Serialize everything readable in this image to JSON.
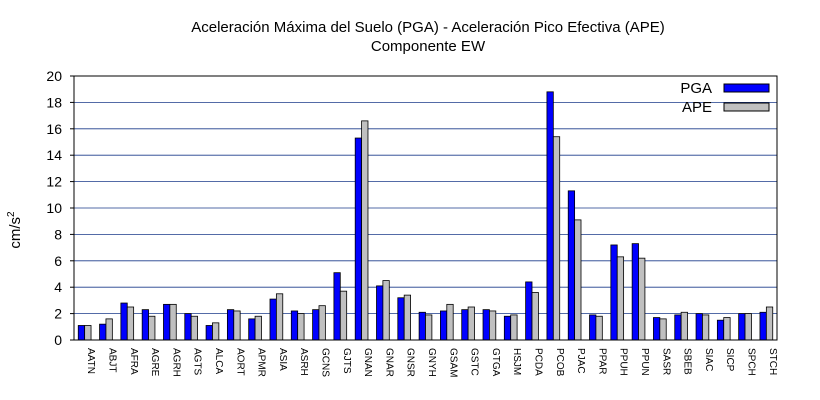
{
  "chart_data": {
    "type": "bar",
    "title": "Aceleración Máxima del Suelo (PGA) -  Aceleración Pico Efectiva (APE)",
    "subtitle": "Componente EW",
    "ylabel": "cm/s",
    "ylabel_sup": "2",
    "xlabel": "",
    "ylim": [
      0,
      20
    ],
    "yticks": [
      0,
      2,
      4,
      6,
      8,
      10,
      12,
      14,
      16,
      18,
      20
    ],
    "grid": true,
    "legend_position": "top-right",
    "categories": [
      "AATN",
      "ABJT",
      "AFRA",
      "AGRE",
      "AGRH",
      "AGTS",
      "ALCA",
      "AORT",
      "APMR",
      "ASIA",
      "ASRH",
      "GCNS",
      "GJTS",
      "GNAN",
      "GNAR",
      "GNSR",
      "GNYH",
      "GSAM",
      "GSTC",
      "GTGA",
      "HSJM",
      "PCDA",
      "PCOB",
      "PJAC",
      "PPAR",
      "PPUH",
      "PPUN",
      "SASR",
      "SBEB",
      "SIAC",
      "SICP",
      "SPCH",
      "STCH"
    ],
    "series": [
      {
        "name": "PGA",
        "color": "#0000ff",
        "values": [
          1.1,
          1.2,
          2.8,
          2.3,
          2.7,
          2.0,
          1.1,
          2.3,
          1.6,
          3.1,
          2.2,
          2.3,
          5.1,
          15.3,
          4.1,
          3.2,
          2.1,
          2.2,
          2.3,
          2.3,
          1.8,
          4.4,
          18.8,
          11.3,
          1.9,
          7.2,
          7.3,
          1.7,
          1.9,
          2.0,
          1.5,
          2.0,
          2.1
        ]
      },
      {
        "name": "APE",
        "color": "#c0c0c0",
        "values": [
          1.1,
          1.6,
          2.5,
          1.8,
          2.7,
          1.8,
          1.3,
          2.2,
          1.8,
          3.5,
          2.0,
          2.6,
          3.7,
          16.6,
          4.5,
          3.4,
          1.9,
          2.7,
          2.5,
          2.2,
          1.9,
          3.6,
          15.4,
          9.1,
          1.8,
          6.3,
          6.2,
          1.6,
          2.1,
          1.9,
          1.7,
          2.0,
          2.5
        ]
      }
    ]
  }
}
